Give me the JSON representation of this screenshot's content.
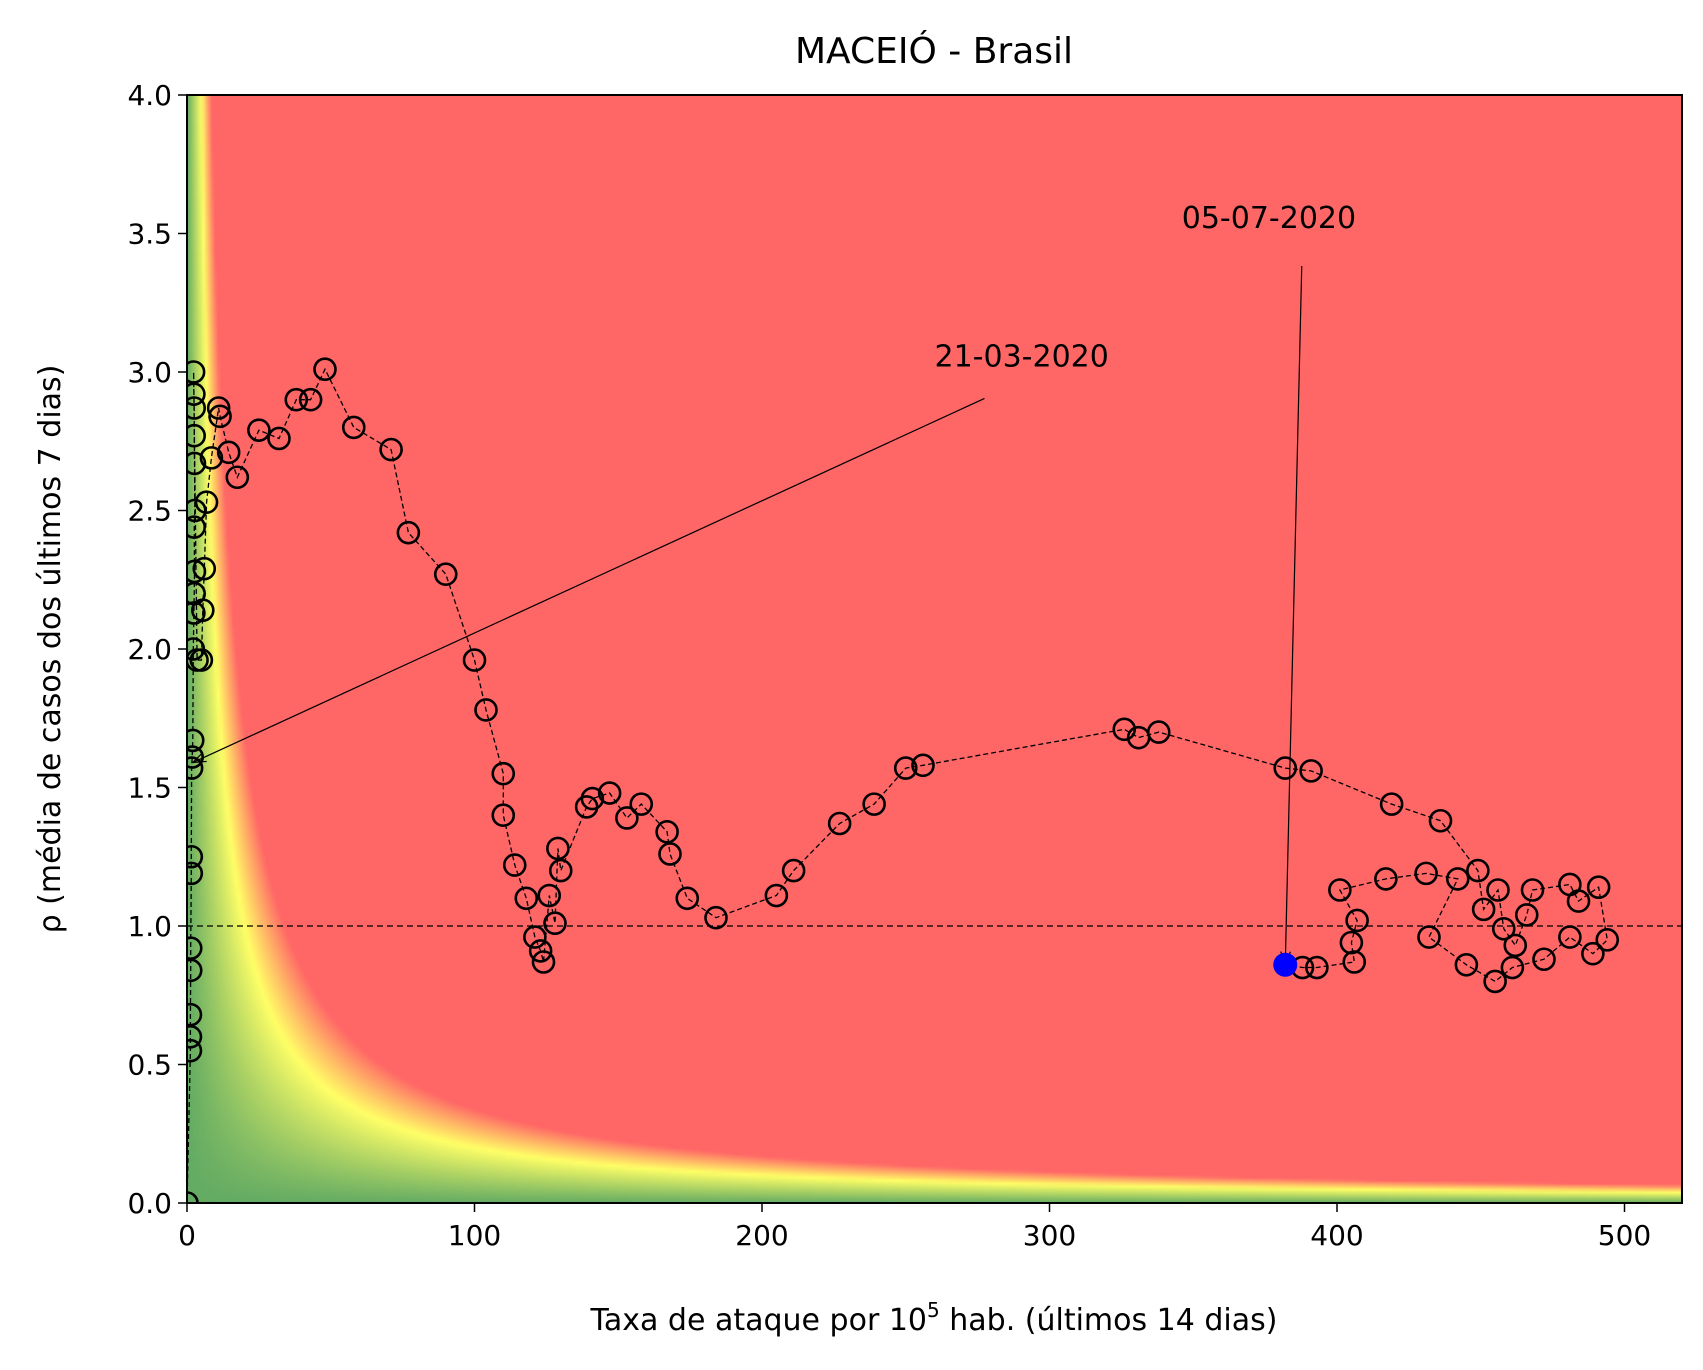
{
  "chart_data": {
    "type": "scatter",
    "title": "MACEIÓ - Brasil",
    "xlabel": "Taxa de ataque por 10",
    "xlabel_sup": "5",
    "xlabel_suffix": " hab. (últimos 14 dias)",
    "ylabel": "ρ (média de casos dos últimos 7 dias)",
    "xlim": [
      0,
      520
    ],
    "ylim": [
      0,
      4
    ],
    "xticks": [
      0,
      100,
      200,
      300,
      400,
      500
    ],
    "yticks": [
      0.0,
      0.5,
      1.0,
      1.5,
      2.0,
      2.5,
      3.0,
      3.5,
      4.0
    ],
    "xtick_labels": [
      "0",
      "100",
      "200",
      "300",
      "400",
      "500"
    ],
    "ytick_labels": [
      "0.0",
      "0.5",
      "1.0",
      "1.5",
      "2.0",
      "2.5",
      "3.0",
      "3.5",
      "4.0"
    ],
    "reference_line_y": 1.0,
    "background": "risk heatmap (green low, yellow medium, red high; risk ∝ x·ρ)",
    "colors": {
      "green": "#63ab63",
      "yellow": "#ffff66",
      "red": "#ff6666",
      "marker": "#000000",
      "highlight": "#0000ff"
    },
    "series": [
      {
        "points": [
          [
            0,
            0.0
          ],
          [
            1.2,
            0.55
          ],
          [
            1.2,
            0.6
          ],
          [
            1.2,
            0.68
          ],
          [
            1.3,
            0.84
          ],
          [
            1.3,
            0.92
          ],
          [
            1.5,
            1.19
          ],
          [
            1.5,
            1.25
          ],
          [
            1.6,
            1.57
          ],
          [
            1.8,
            1.61
          ],
          [
            2.0,
            1.67
          ],
          [
            2.2,
            2.0
          ],
          [
            2.4,
            2.13
          ],
          [
            2.5,
            2.2
          ],
          [
            2.6,
            2.28
          ],
          [
            2.5,
            2.44
          ],
          [
            2.7,
            2.5
          ],
          [
            2.6,
            2.67
          ],
          [
            2.5,
            2.77
          ],
          [
            2.5,
            2.87
          ],
          [
            2.4,
            2.92
          ],
          [
            2.3,
            3.0
          ],
          [
            3.5,
            1.96
          ],
          [
            5.0,
            1.96
          ],
          [
            5.5,
            2.14
          ],
          [
            6.0,
            2.29
          ],
          [
            6.8,
            2.53
          ],
          [
            8.5,
            2.69
          ],
          [
            11.0,
            2.87
          ],
          [
            11.5,
            2.84
          ],
          [
            14.5,
            2.71
          ],
          [
            17.5,
            2.62
          ],
          [
            25.0,
            2.79
          ],
          [
            32.0,
            2.76
          ],
          [
            38.0,
            2.9
          ],
          [
            43.0,
            2.9
          ],
          [
            48.0,
            3.01
          ],
          [
            58.0,
            2.8
          ],
          [
            71.0,
            2.72
          ],
          [
            77.0,
            2.42
          ],
          [
            90.0,
            2.27
          ],
          [
            100.0,
            1.96
          ],
          [
            104.0,
            1.78
          ],
          [
            110.0,
            1.55
          ],
          [
            110.0,
            1.4
          ],
          [
            114.0,
            1.22
          ],
          [
            118.0,
            1.1
          ],
          [
            121.0,
            0.96
          ],
          [
            123.0,
            0.91
          ],
          [
            124.0,
            0.87
          ],
          [
            126.0,
            1.11
          ],
          [
            128.0,
            1.01
          ],
          [
            129.0,
            1.28
          ],
          [
            130.0,
            1.2
          ],
          [
            139.0,
            1.43
          ],
          [
            141.0,
            1.46
          ],
          [
            147.0,
            1.48
          ],
          [
            153.0,
            1.39
          ],
          [
            158.0,
            1.44
          ],
          [
            167.0,
            1.34
          ],
          [
            168.0,
            1.26
          ],
          [
            174.0,
            1.1
          ],
          [
            184.0,
            1.03
          ],
          [
            205.0,
            1.11
          ],
          [
            211.0,
            1.2
          ],
          [
            227.0,
            1.37
          ],
          [
            239.0,
            1.44
          ],
          [
            250.0,
            1.57
          ],
          [
            256.0,
            1.58
          ],
          [
            326.0,
            1.71
          ],
          [
            331.0,
            1.68
          ],
          [
            338.0,
            1.7
          ],
          [
            382.0,
            1.57
          ],
          [
            391.0,
            1.56
          ],
          [
            419.0,
            1.44
          ],
          [
            436.0,
            1.38
          ],
          [
            449.0,
            1.2
          ],
          [
            451.0,
            1.06
          ],
          [
            456.0,
            1.13
          ],
          [
            458.0,
            0.99
          ],
          [
            462.0,
            0.93
          ],
          [
            466.0,
            1.04
          ],
          [
            468.0,
            1.13
          ],
          [
            481.0,
            1.15
          ],
          [
            484.0,
            1.09
          ],
          [
            491.0,
            1.14
          ],
          [
            494.0,
            0.95
          ],
          [
            489.0,
            0.9
          ],
          [
            481.0,
            0.96
          ],
          [
            472.0,
            0.88
          ],
          [
            461.0,
            0.85
          ],
          [
            455.0,
            0.8
          ],
          [
            445.0,
            0.86
          ],
          [
            432.0,
            0.96
          ],
          [
            442.0,
            1.17
          ],
          [
            431.0,
            1.19
          ],
          [
            417.0,
            1.17
          ],
          [
            401.0,
            1.13
          ],
          [
            407.0,
            1.02
          ],
          [
            405.0,
            0.94
          ],
          [
            406.0,
            0.87
          ],
          [
            393.0,
            0.85
          ],
          [
            388.0,
            0.85
          ],
          [
            382.0,
            0.86
          ]
        ]
      }
    ],
    "highlight_point": [
      382.0,
      0.86
    ],
    "annotations": [
      {
        "text": "21-03-2020",
        "point": [
          2.0,
          1.59
        ],
        "text_pos": [
          260,
          3.02
        ]
      },
      {
        "text": "05-07-2020",
        "point": [
          382.0,
          0.86
        ],
        "text_pos": [
          346,
          3.52
        ]
      }
    ]
  }
}
